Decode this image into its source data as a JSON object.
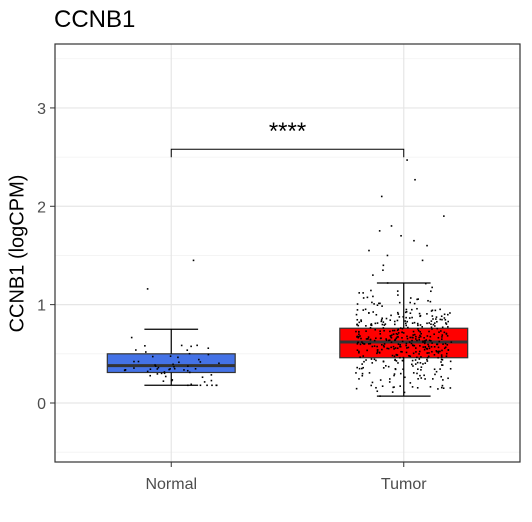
{
  "chart_data": {
    "type": "box",
    "title": "CCNB1",
    "xlabel": "",
    "ylabel": "CCNB1 (logCPM)",
    "ylim": [
      -0.6,
      3.65
    ],
    "yticks": [
      "0",
      "1",
      "2",
      "3"
    ],
    "ytick_values": [
      0,
      1,
      2,
      3
    ],
    "categories": [
      "Normal",
      "Tumor"
    ],
    "grid": true,
    "significance": {
      "label": "****",
      "between": [
        "Normal",
        "Tumor"
      ],
      "y": 2.58
    },
    "boxes": [
      {
        "name": "Normal",
        "color": "#4472e6",
        "whisker_low": 0.18,
        "q1": 0.31,
        "median": 0.38,
        "q3": 0.5,
        "whisker_high": 0.75,
        "n_points": 60,
        "outliers": [
          1.16,
          1.45
        ]
      },
      {
        "name": "Tumor",
        "color": "#ff0000",
        "whisker_low": 0.07,
        "q1": 0.46,
        "median": 0.62,
        "q3": 0.76,
        "whisker_high": 1.22,
        "n_points": 430,
        "outliers": [
          1.3,
          1.35,
          1.4,
          1.45,
          1.5,
          1.55,
          1.6,
          1.65,
          1.7,
          1.75,
          1.8,
          1.9,
          2.1,
          2.27,
          2.47
        ]
      }
    ]
  }
}
